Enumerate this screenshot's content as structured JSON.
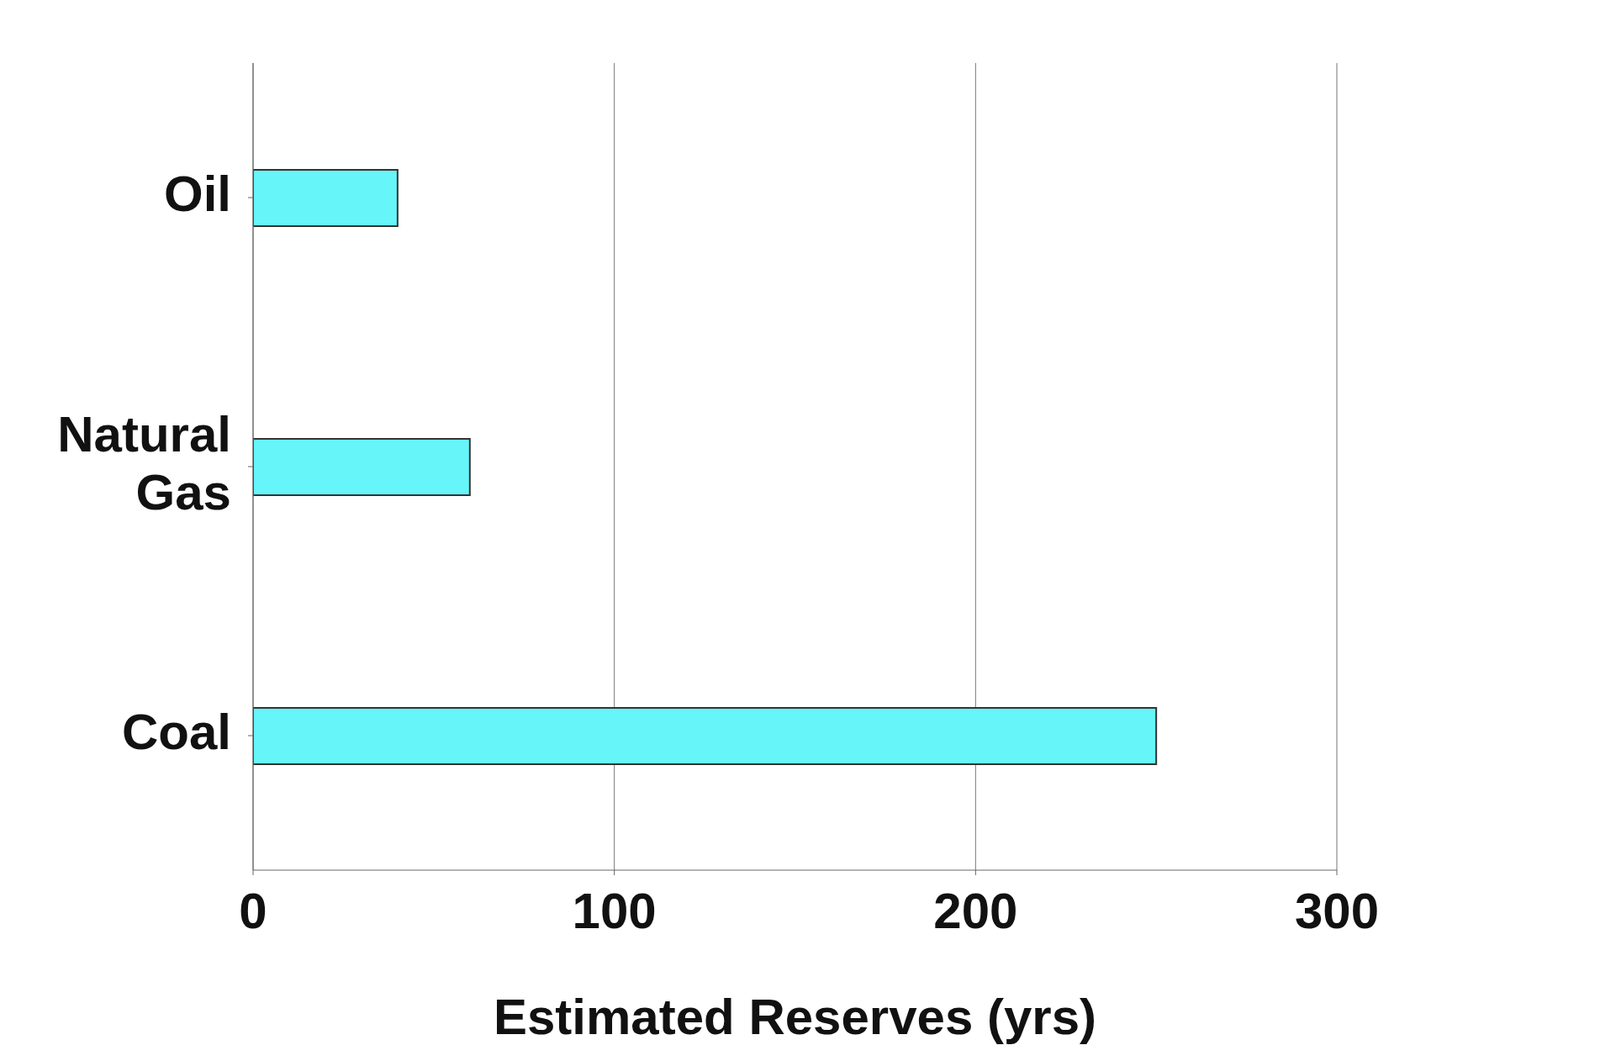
{
  "chart_data": {
    "type": "bar",
    "orientation": "horizontal",
    "categories": [
      "Oil",
      "Natural Gas",
      "Coal"
    ],
    "values": [
      40,
      60,
      250
    ],
    "color": "#66f6fa",
    "xlabel": "Estimated Reserves (yrs)",
    "xlim": [
      0,
      300
    ],
    "xticks": [
      0,
      100,
      200,
      300
    ],
    "grid": true
  }
}
